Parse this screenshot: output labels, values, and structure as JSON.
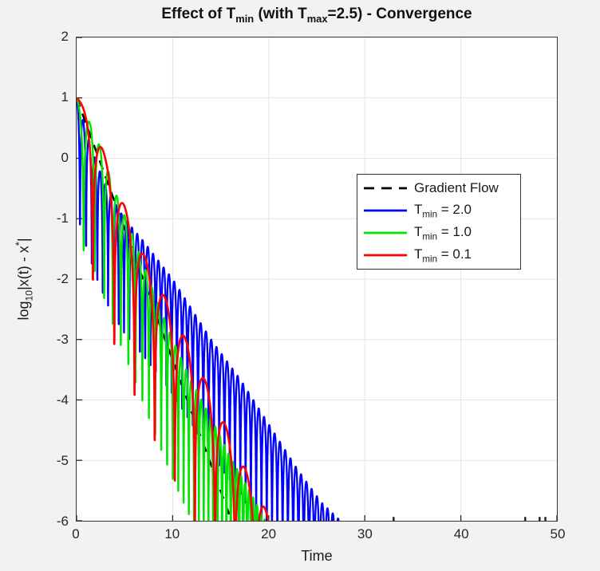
{
  "figure": {
    "background": "#f2f2f2",
    "plot_background": "#ffffff",
    "axis_color": "#333333",
    "grid_color": "#e4e4e4",
    "tick_color": "#262626",
    "tick_label_color": "#262626",
    "title_color": "#111111"
  },
  "chart_data": {
    "type": "line",
    "title": "Effect of T_min (with T_max=2.5) - Convergence",
    "title_parts": [
      {
        "t": "Effect of T"
      },
      {
        "sub": "min"
      },
      {
        "t": " (with T"
      },
      {
        "sub": "max"
      },
      {
        "t": "=2.5) - Convergence"
      }
    ],
    "xlabel": "Time",
    "ylabel": "log10|x(t) - x*|",
    "ylabel_parts": [
      {
        "t": "log"
      },
      {
        "sub": "10"
      },
      {
        "t": "|x(t) - x"
      },
      {
        "sup": "*"
      },
      {
        "t": "|"
      }
    ],
    "xlim": [
      0,
      50
    ],
    "ylim": [
      -6,
      2
    ],
    "xticks": [
      0,
      10,
      20,
      30,
      40,
      50
    ],
    "yticks": [
      2,
      1,
      0,
      -1,
      -2,
      -3,
      -4,
      -5,
      -6
    ],
    "grid": true,
    "legend": {
      "position": "upper-right-inside",
      "entries": [
        {
          "label": "Gradient Flow",
          "label_parts": [
            {
              "t": "Gradient Flow"
            }
          ],
          "color": "#000000",
          "dashed": true
        },
        {
          "label": "T_min = 2.0",
          "label_parts": [
            {
              "t": "T"
            },
            {
              "sub": "min"
            },
            {
              "t": " = 2.0"
            }
          ],
          "color": "#0000ff",
          "dashed": false
        },
        {
          "label": "T_min = 1.0",
          "label_parts": [
            {
              "t": "T"
            },
            {
              "sub": "min"
            },
            {
              "t": " = 1.0"
            }
          ],
          "color": "#00e400",
          "dashed": false
        },
        {
          "label": "T_min = 0.1",
          "label_parts": [
            {
              "t": "T"
            },
            {
              "sub": "min"
            },
            {
              "t": " = 0.1"
            }
          ],
          "color": "#ff0000",
          "dashed": false
        }
      ]
    },
    "series": [
      {
        "name": "Gradient Flow",
        "color": "#000000",
        "line_style": "dashed",
        "line_width": 2.6,
        "dash_pattern": "12 9",
        "model": {
          "kind": "linear",
          "y0": 1,
          "slope": -0.434,
          "t_end": 16.3
        }
      },
      {
        "name": "T_min = 2.0",
        "color": "#0000ff",
        "line_style": "solid",
        "line_width": 2.3,
        "model": {
          "kind": "damped_oscillation",
          "envelope_points": [
            [
              0,
              1
            ],
            [
              1,
              0.45
            ],
            [
              2,
              -0.05
            ],
            [
              3.5,
              -0.62
            ],
            [
              5,
              -1.0
            ],
            [
              7,
              -1.38
            ],
            [
              10,
              -2.0
            ],
            [
              14,
              -3.0
            ],
            [
              17,
              -3.65
            ],
            [
              20,
              -4.4
            ],
            [
              23,
              -5.15
            ],
            [
              25.5,
              -5.7
            ],
            [
              27.8,
              -6.05
            ],
            [
              28.8,
              -6.55
            ]
          ],
          "theta": {
            "a": 5.71,
            "b": 0,
            "c": -1.5
          },
          "depth_scale": 1.5,
          "depth_floor": 1.9,
          "t_end": 28.8,
          "dt": 0.005
        }
      },
      {
        "name": "T_min = 1.0",
        "color": "#00e400",
        "line_style": "solid",
        "line_width": 2.4,
        "model": {
          "kind": "damped_oscillation",
          "envelope_points": [
            [
              0,
              1
            ],
            [
              2,
              0.4
            ],
            [
              4,
              -0.55
            ],
            [
              6,
              -1.35
            ],
            [
              8,
              -2.2
            ],
            [
              10,
              -3.0
            ],
            [
              12,
              -3.7
            ],
            [
              14,
              -4.3
            ],
            [
              16,
              -4.95
            ],
            [
              18,
              -5.5
            ],
            [
              19.8,
              -6.05
            ],
            [
              20.5,
              -6.6
            ]
          ],
          "theta": {
            "a": 2.6,
            "b": 0.14,
            "c": -0.8
          },
          "depth_scale": 1.5,
          "depth_floor": 2.3,
          "t_end": 20.5,
          "dt": 0.005
        }
      },
      {
        "name": "T_min = 0.1",
        "color": "#ff0000",
        "line_style": "solid",
        "line_width": 2.6,
        "model": {
          "kind": "damped_oscillation",
          "envelope_points": [
            [
              0,
              1
            ],
            [
              1.6,
              0.75
            ],
            [
              3,
              0.0
            ],
            [
              5,
              -0.8
            ],
            [
              7,
              -1.6
            ],
            [
              9.5,
              -2.4
            ],
            [
              12,
              -3.2
            ],
            [
              14,
              -3.9
            ],
            [
              16,
              -4.6
            ],
            [
              18,
              -5.3
            ],
            [
              19.5,
              -5.75
            ],
            [
              20.9,
              -6.35
            ]
          ],
          "theta": {
            "a": 1.5,
            "b": 0,
            "c": -1.2
          },
          "depth_scale": 1.5,
          "depth_floor": 2.7,
          "t_end": 20.9,
          "dt": 0.005
        }
      }
    ],
    "noise_marks": {
      "color": "#1a1a1a",
      "y": -5.95,
      "t": [
        33.0,
        46.7,
        48.2,
        48.8
      ]
    }
  }
}
